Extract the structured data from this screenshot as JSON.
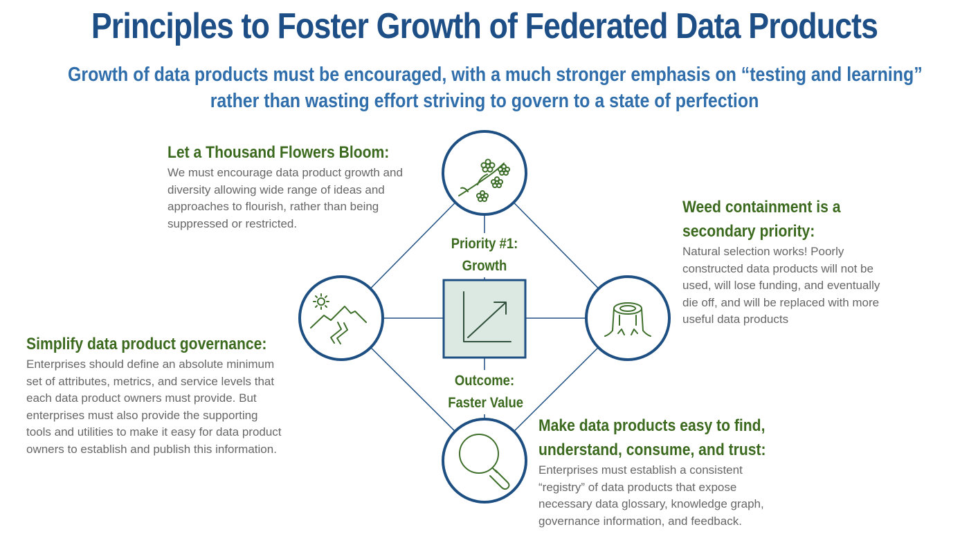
{
  "title": "Principles to Foster Growth of Federated Data Products",
  "subtitle": {
    "line1": "Growth of data products must be encouraged, with a much stronger emphasis on “testing and learning”",
    "line2": "rather than wasting effort striving to govern to a state of perfection"
  },
  "center": {
    "priority_line1": "Priority #1:",
    "priority_line2": "Growth",
    "outcome_line1": "Outcome:",
    "outcome_line2": "Faster Value"
  },
  "principles": {
    "flowers": {
      "heading": "Let a Thousand Flowers Bloom:",
      "lines": [
        "We must encourage data product growth and",
        "diversity allowing wide range of ideas and",
        "approaches to flourish, rather than being",
        "suppressed or restricted."
      ]
    },
    "weed": {
      "heading_line1": "Weed containment is a",
      "heading_line2": "secondary priority:",
      "lines": [
        "Natural selection works! Poorly",
        "constructed data products will not be",
        "used, will lose funding, and eventually",
        "die off, and will be replaced with more",
        "useful data products"
      ]
    },
    "governance": {
      "heading": "Simplify data product governance:",
      "lines": [
        "Enterprises should define an absolute minimum",
        "set of attributes, metrics, and service levels that",
        "each data product owners must provide.  But",
        "enterprises must also provide the supporting",
        "tools and utilities to make it easy for data product",
        "owners to establish and publish this information."
      ]
    },
    "find": {
      "heading_line1": "Make data products easy to find,",
      "heading_line2": "understand, consume, and trust:",
      "lines": [
        "Enterprises must establish a consistent",
        "“registry” of data products that expose",
        "necessary data glossary, knowledge graph,",
        "governance information, and feedback."
      ]
    }
  },
  "icons": {
    "top": "flower-branch-icon",
    "left": "mountain-sun-icon",
    "right": "tree-stump-icon",
    "bottom": "magnifier-icon",
    "center": "growth-arrow-icon"
  },
  "colors": {
    "title": "#1d4f86",
    "subtitle": "#2f6eab",
    "heading": "#3b6a1e",
    "circle_stroke": "#1e4f82",
    "icon_stroke": "#3d6e2a",
    "center_fill": "#dbe9e2"
  }
}
